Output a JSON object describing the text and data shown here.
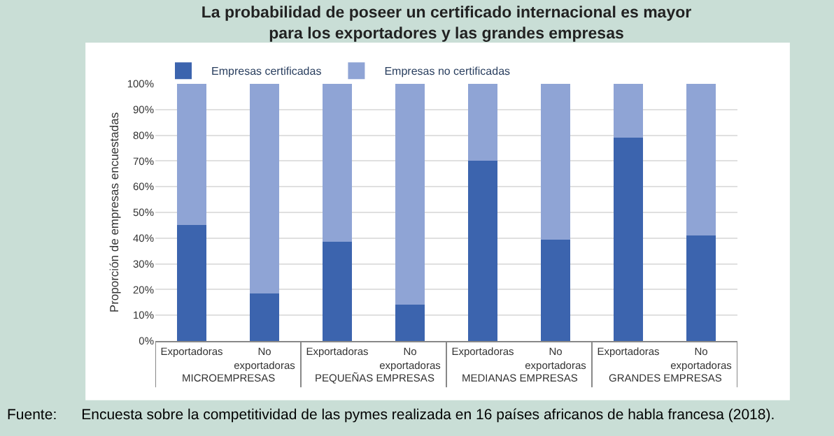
{
  "chart_data": {
    "type": "bar",
    "title": "La probabilidad de poseer un certificado internacional es mayor para los exportadores y las grandes empresas",
    "ylabel": "Proporción de empresas encuestadas",
    "categories": [
      "Exportadoras",
      "No exportadoras",
      "Exportadoras",
      "No exportadoras",
      "Exportadoras",
      "No exportadoras",
      "Exportadoras",
      "No exportadoras"
    ],
    "series": [
      {
        "name": "Empresas certificadas",
        "color": "#3c64ae",
        "values": [
          45,
          18.5,
          38.5,
          14,
          70,
          39.5,
          79,
          41
        ]
      },
      {
        "name": "Empresas no certificadas",
        "color": "#8fa4d5",
        "values": [
          55,
          81.5,
          61.5,
          86,
          30,
          60.5,
          21,
          59
        ]
      }
    ],
    "stacked": true,
    "ylim": [
      0,
      100
    ],
    "yticks": [
      {
        "value": 0,
        "label": "0%"
      },
      {
        "value": 10,
        "label": "10%"
      },
      {
        "value": 20,
        "label": "20%"
      },
      {
        "value": 30,
        "label": "30%"
      },
      {
        "value": 40,
        "label": "40%"
      },
      {
        "value": 50,
        "label": "50%"
      },
      {
        "value": 60,
        "label": "60%"
      },
      {
        "value": 70,
        "label": "70%"
      },
      {
        "value": 80,
        "label": "80%"
      },
      {
        "value": 90,
        "label": "90%"
      },
      {
        "value": 100,
        "label": "100%"
      }
    ],
    "grid": "y",
    "legend": "top left",
    "annotations": [
      "MICROEMPRESAS",
      "PEQUEÑAS EMPRESAS",
      "MEDIANAS EMPRESAS",
      "GRANDES EMPRESAS",
      "Fuente:      Encuesta sobre la competitividad de las pymes realizada en 16 países africanos de habla francesa (2018)."
    ]
  }
}
